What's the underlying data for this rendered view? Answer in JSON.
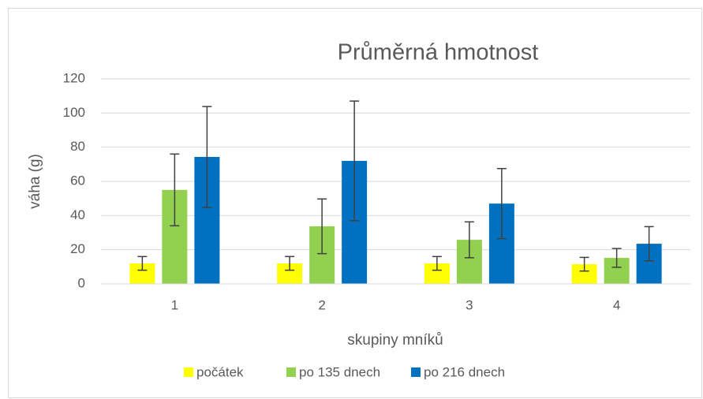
{
  "chart_data": {
    "type": "bar",
    "title": "Průměrná hmotnost",
    "x_label": "skupiny mníků",
    "y_label": "váha (g)",
    "categories": [
      "1",
      "2",
      "3",
      "4"
    ],
    "series": [
      {
        "name": "počátek",
        "color": "#ffff00",
        "values": [
          12,
          12,
          12,
          11.5
        ],
        "errors": [
          4,
          4,
          4,
          4
        ]
      },
      {
        "name": "po 135 dnech",
        "color": "#92d050",
        "values": [
          55,
          33.7,
          25.8,
          15.2
        ],
        "errors": [
          21,
          16,
          10.5,
          5.5
        ]
      },
      {
        "name": "po 216 dnech",
        "color": "#0070c0",
        "values": [
          74.3,
          72,
          47,
          23.5
        ],
        "errors": [
          29.5,
          35,
          20.5,
          10
        ]
      }
    ],
    "ylim": [
      0,
      120
    ],
    "yticks": [
      0,
      20,
      40,
      60,
      80,
      100,
      120
    ],
    "grid": true,
    "legend": "bottom"
  }
}
